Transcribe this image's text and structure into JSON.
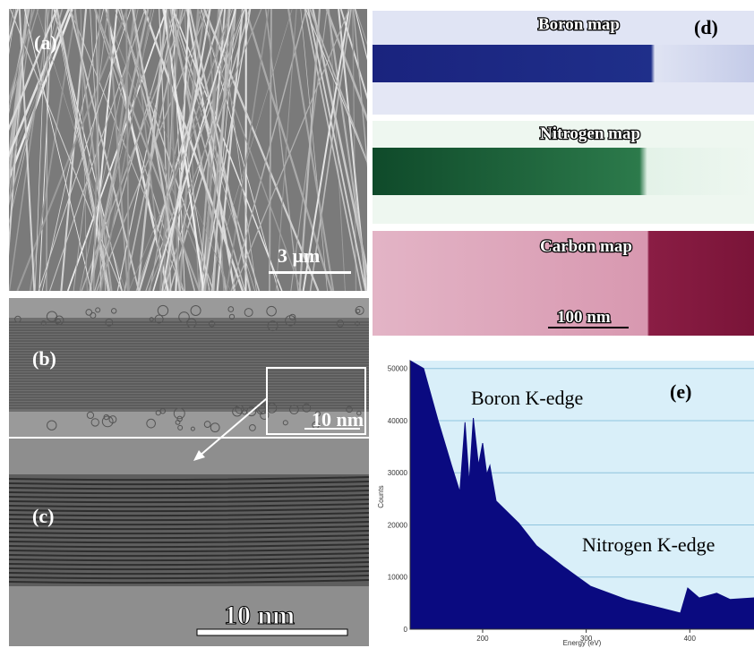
{
  "panels": {
    "a": {
      "label": "(a)",
      "scale_bar": "3 μm"
    },
    "b": {
      "label": "(b)",
      "scale_bar": "10 nm"
    },
    "c": {
      "label": "(c)",
      "scale_bar": "10 nm"
    },
    "d": {
      "label": "(d)",
      "maps": [
        "Boron map",
        "Nitrogen map",
        "Carbon map"
      ],
      "scale_bar": "100 nm"
    },
    "e": {
      "label": "(e)"
    }
  },
  "chart_data": {
    "type": "area",
    "color": "#0a0a80",
    "annotations": [
      "Boron K-edge",
      "Nitrogen K-edge"
    ],
    "x_label": "Energy (eV)",
    "y_label": "Counts",
    "x": [
      130,
      143,
      157,
      170,
      178,
      183,
      187,
      191,
      196,
      200,
      204,
      207,
      213,
      235,
      252,
      278,
      304,
      339,
      374,
      391,
      398,
      409,
      426,
      439,
      462
    ],
    "values": [
      51500,
      50000,
      40000,
      31400,
      26300,
      39700,
      28000,
      40500,
      31400,
      35700,
      29700,
      31400,
      24600,
      20300,
      16000,
      12000,
      8250,
      5670,
      3950,
      3100,
      7900,
      6000,
      6900,
      5700,
      6000
    ],
    "xlim": [
      130,
      462
    ],
    "ylim": [
      0,
      51500
    ],
    "xticks": [
      200,
      300,
      400
    ],
    "yticks": [
      0,
      10000,
      20000,
      30000,
      40000,
      50000
    ],
    "grid": true
  }
}
